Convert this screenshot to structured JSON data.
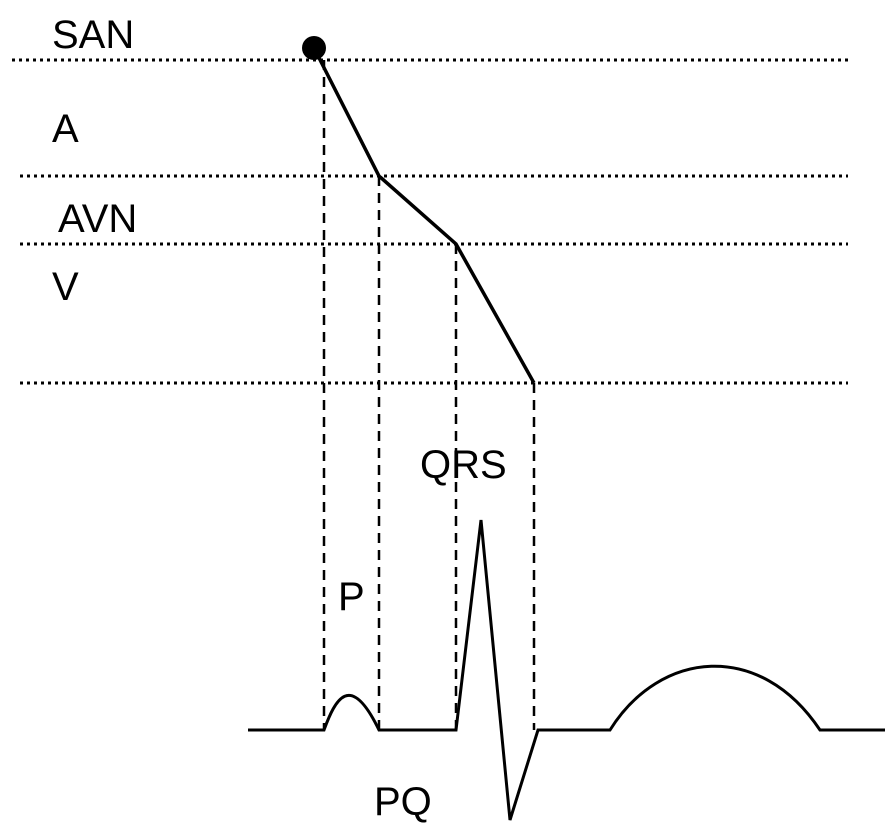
{
  "labels": {
    "san": "SAN",
    "a": "A",
    "avn": "AVN",
    "v": "V",
    "qrs": "QRS",
    "p": "P",
    "pq": "PQ"
  }
}
